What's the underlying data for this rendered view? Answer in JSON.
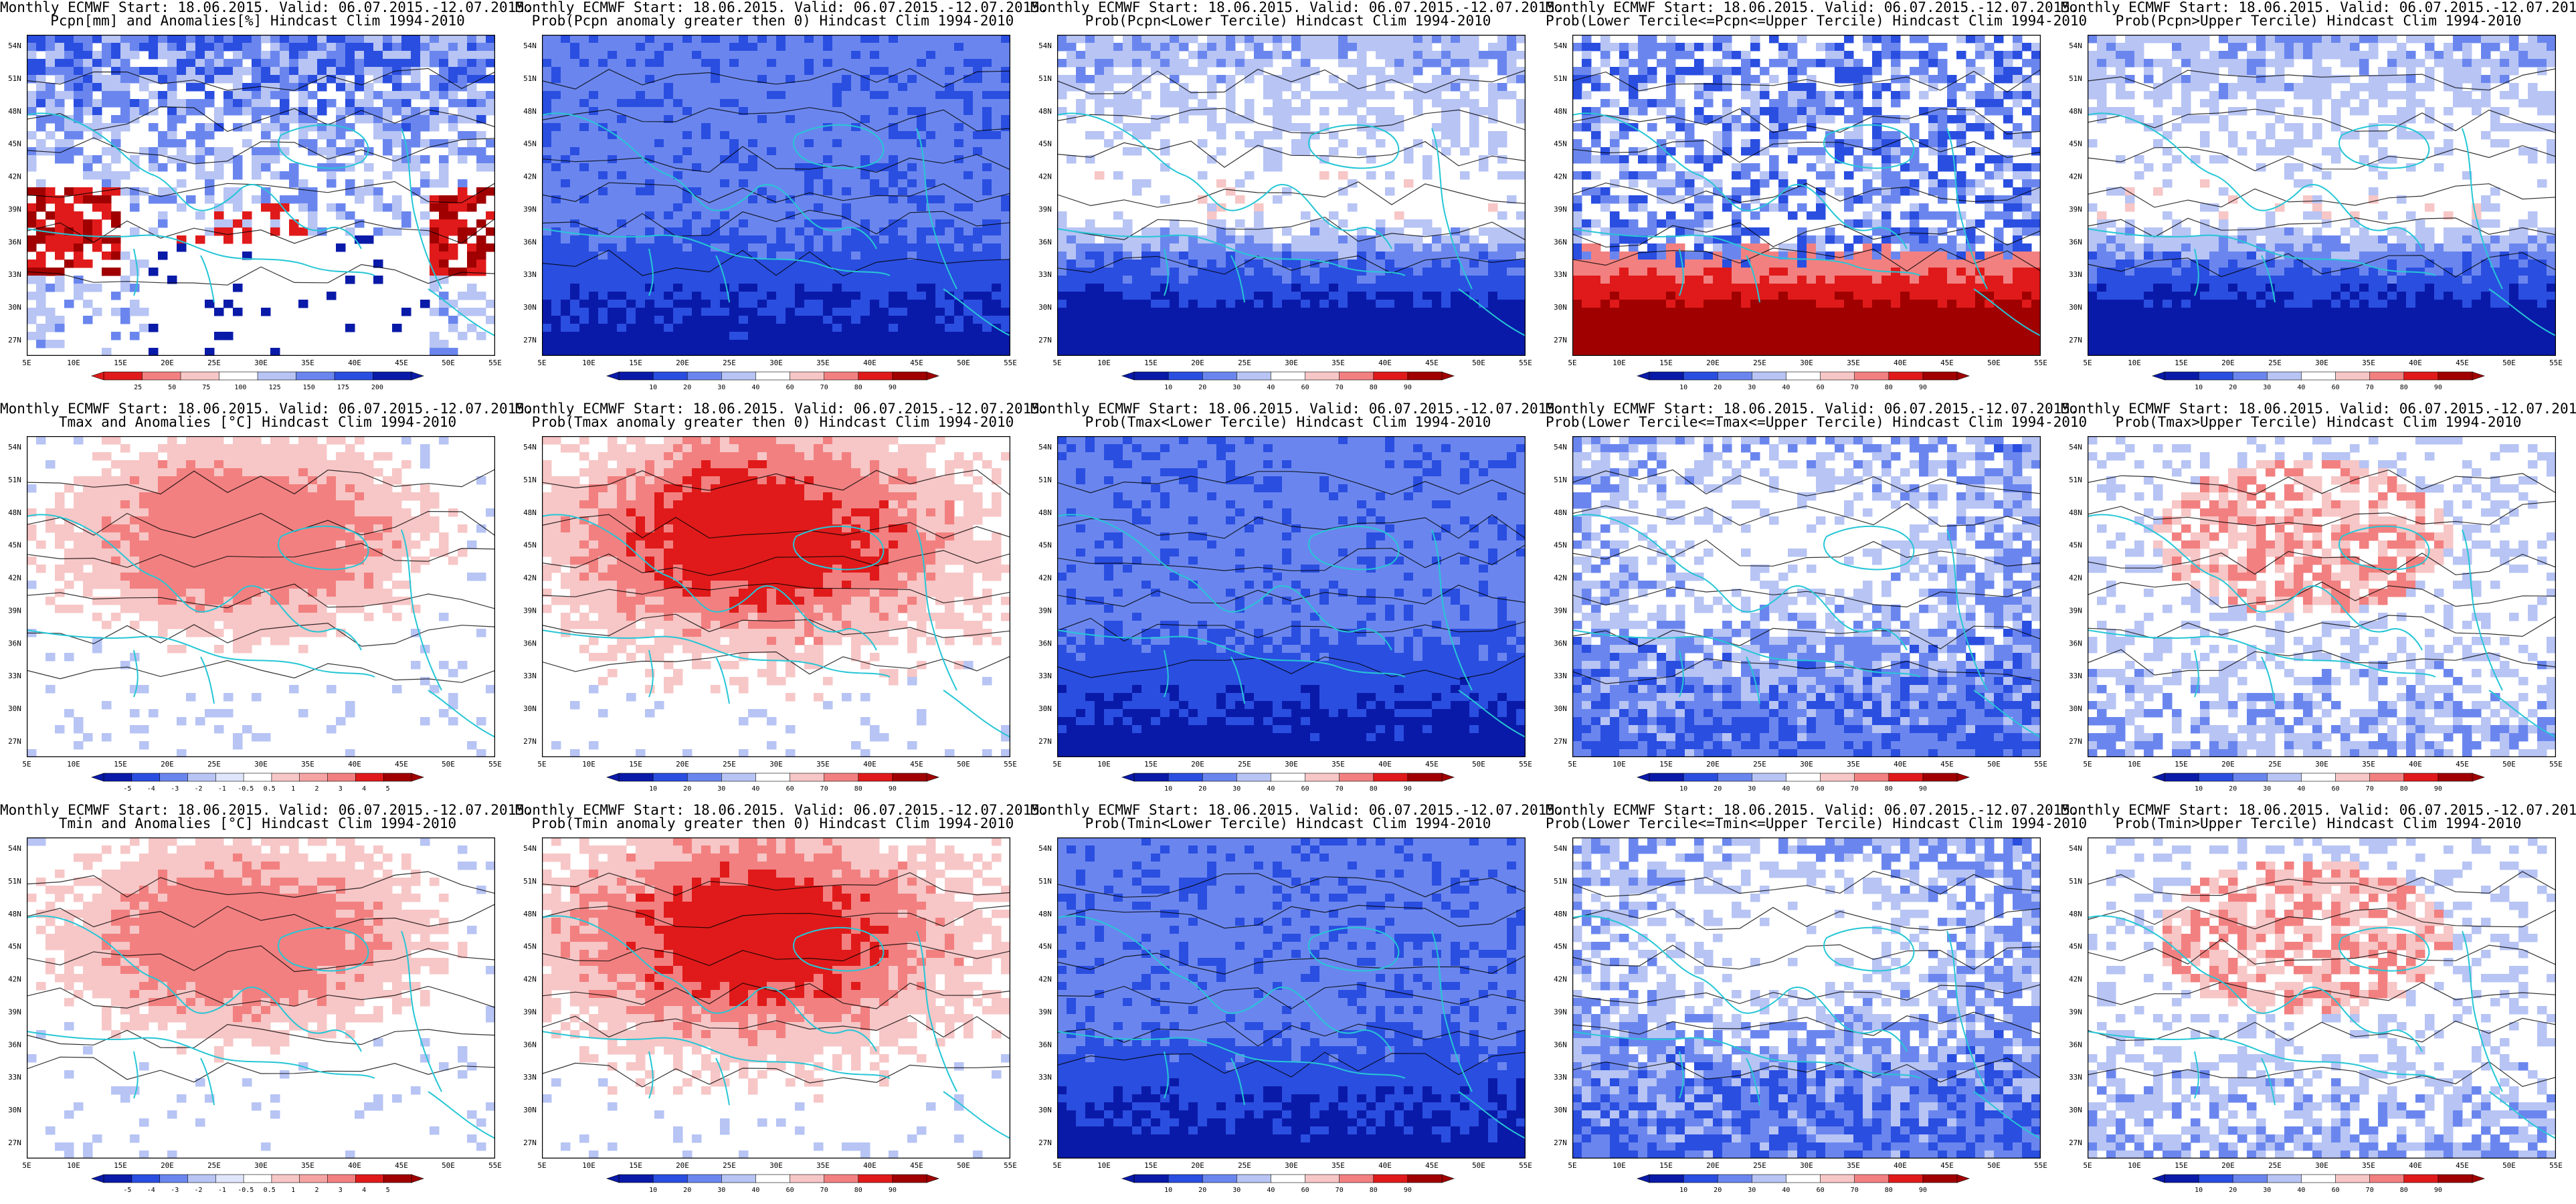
{
  "header": {
    "line1": "Monthly ECMWF Start: 18.06.2015. Valid: 06.07.2015.-12.07.2015."
  },
  "axes": {
    "lon_labels": [
      "5E",
      "10E",
      "15E",
      "20E",
      "25E",
      "30E",
      "35E",
      "40E",
      "45E",
      "50E",
      "55E"
    ],
    "lat_labels": [
      "54N",
      "51N",
      "48N",
      "45N",
      "42N",
      "39N",
      "36N",
      "33N",
      "30N",
      "27N"
    ]
  },
  "colors": {
    "deep_blue": "#0a1aa8",
    "blue": "#2a4ee0",
    "mid_blue": "#6a86ee",
    "light_blue": "#b7c4f4",
    "white": "#ffffff",
    "light_red": "#f7c6c6",
    "mid_red": "#f28080",
    "red": "#e01a1a",
    "dark_red": "#a00000",
    "coast": "#26c6d6",
    "contour": "#000000"
  },
  "colorbars": {
    "pcpn": [
      "25",
      "50",
      "75",
      "100",
      "125",
      "150",
      "175",
      "200"
    ],
    "prob": [
      "10",
      "20",
      "30",
      "40",
      "60",
      "70",
      "80",
      "90"
    ],
    "temp": [
      "-5",
      "-4",
      "-3",
      "-2",
      "-1",
      "-0.5",
      "0.5",
      "1",
      "2",
      "3",
      "4",
      "5"
    ]
  },
  "panels": [
    {
      "id": "pcpn-anom",
      "title": "Pcpn[mm] and Anomalies[%] Hindcast Clim 1994-2010",
      "cbar": "pcpn",
      "pattern": "mixed-pcpn"
    },
    {
      "id": "pcpn-pos",
      "title": "Prob(Pcpn anomaly greater then 0) Hindcast Clim 1994-2010",
      "cbar": "prob",
      "pattern": "blue-strong"
    },
    {
      "id": "pcpn-lower",
      "title": "Prob(Pcpn<Lower Tercile) Hindcast Clim 1994-2010",
      "cbar": "prob",
      "pattern": "blue-south"
    },
    {
      "id": "pcpn-mid",
      "title": "Prob(Lower Tercile<=Pcpn<=Upper Tercile) Hindcast Clim 1994-2010",
      "cbar": "prob",
      "pattern": "red-south"
    },
    {
      "id": "pcpn-upper",
      "title": "Prob(Pcpn>Upper Tercile) Hindcast Clim 1994-2010",
      "cbar": "prob",
      "pattern": "blue-south"
    },
    {
      "id": "tmax-anom",
      "title": "Tmax and Anomalies [°C] Hindcast Clim 1994-2010",
      "cbar": "temp",
      "pattern": "red-light"
    },
    {
      "id": "tmax-pos",
      "title": "Prob(Tmax anomaly greater then 0) Hindcast Clim 1994-2010",
      "cbar": "prob",
      "pattern": "red-mid"
    },
    {
      "id": "tmax-lower",
      "title": "Prob(Tmax<Lower Tercile) Hindcast Clim 1994-2010",
      "cbar": "prob",
      "pattern": "blue-strong"
    },
    {
      "id": "tmax-mid",
      "title": "Prob(Lower Tercile<=Tmax<=Upper Tercile) Hindcast Clim 1994-2010",
      "cbar": "prob",
      "pattern": "blue-mixed"
    },
    {
      "id": "tmax-upper",
      "title": "Prob(Tmax>Upper Tercile) Hindcast Clim 1994-2010",
      "cbar": "prob",
      "pattern": "mixed-red-blue"
    },
    {
      "id": "tmin-anom",
      "title": "Tmin and Anomalies [°C] Hindcast Clim 1994-2010",
      "cbar": "temp",
      "pattern": "red-light"
    },
    {
      "id": "tmin-pos",
      "title": "Prob(Tmin anomaly greater then 0) Hindcast Clim 1994-2010",
      "cbar": "prob",
      "pattern": "red-mid"
    },
    {
      "id": "tmin-lower",
      "title": "Prob(Tmin<Lower Tercile) Hindcast Clim 1994-2010",
      "cbar": "prob",
      "pattern": "blue-strong"
    },
    {
      "id": "tmin-mid",
      "title": "Prob(Lower Tercile<=Tmin<=Upper Tercile) Hindcast Clim 1994-2010",
      "cbar": "prob",
      "pattern": "blue-mixed"
    },
    {
      "id": "tmin-upper",
      "title": "Prob(Tmin>Upper Tercile) Hindcast Clim 1994-2010",
      "cbar": "prob",
      "pattern": "mixed-red-blue"
    }
  ]
}
